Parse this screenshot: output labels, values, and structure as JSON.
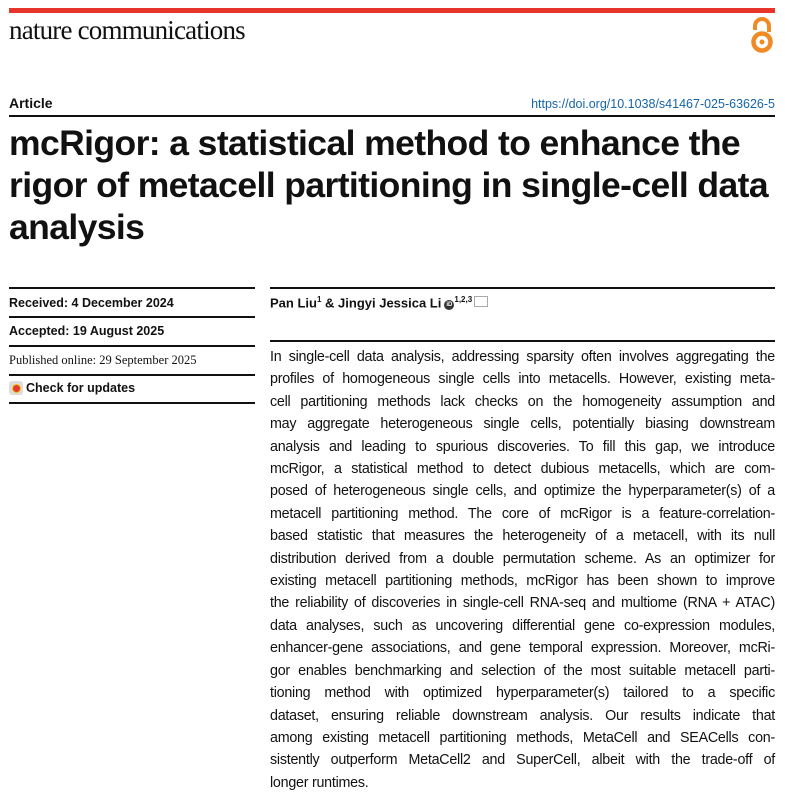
{
  "header": {
    "journal": "nature communications",
    "open_access_icon": "open-access-icon",
    "accent_color": "#e8352b",
    "oa_color": "#f08a24"
  },
  "article_type": "Article",
  "doi": "https://doi.org/10.1038/s41467-025-63626-5",
  "title": "mcRigor: a statistical method to enhance the rigor of metacell partitioning in single-cell data analysis",
  "dates": {
    "received": "Received: 4 December 2024",
    "accepted": "Accepted: 19 August 2025",
    "published": "Published online: 29 September 2025"
  },
  "check_updates": "Check for updates",
  "authors": {
    "author1": "Pan Liu",
    "author1_aff": "1",
    "sep": " & ",
    "author2": "Jingyi Jessica Li",
    "author2_aff": "1,2,3",
    "orcid_icon": "orcid-icon",
    "mail_icon": "mail-icon"
  },
  "abstract_lines": [
    "In single-cell data analysis, addressing sparsity often involves aggregating the",
    "profiles of homogeneous single cells into metacells. However, existing meta-",
    "cell partitioning methods lack checks on the homogeneity assumption and",
    "may aggregate heterogeneous single cells, potentially biasing downstream",
    "analysis and leading to spurious discoveries. To fill this gap, we introduce",
    "mcRigor, a statistical method to detect dubious metacells, which are com-",
    "posed of heterogeneous single cells, and optimize the hyperparameter(s) of a",
    "metacell partitioning method. The core of mcRigor is a feature-correlation-",
    "based statistic that measures the heterogeneity of a metacell, with its null",
    "distribution derived from a double permutation scheme. As an optimizer for",
    "existing metacell partitioning methods, mcRigor has been shown to improve",
    "the reliability of discoveries in single-cell RNA-seq and multiome (RNA + ATAC)",
    "data analyses, such as uncovering differential gene co-expression modules,",
    "enhancer-gene associations, and gene temporal expression. Moreover, mcRi-",
    "gor enables benchmarking and selection of the most suitable metacell parti-",
    "tioning method with optimized hyperparameter(s) tailored to a specific",
    "dataset, ensuring reliable downstream analysis. Our results indicate that",
    "among existing metacell partitioning methods, MetaCell and SEACells con-",
    "sistently outperform MetaCell2 and SuperCell, albeit with the trade-off of",
    "longer runtimes."
  ]
}
